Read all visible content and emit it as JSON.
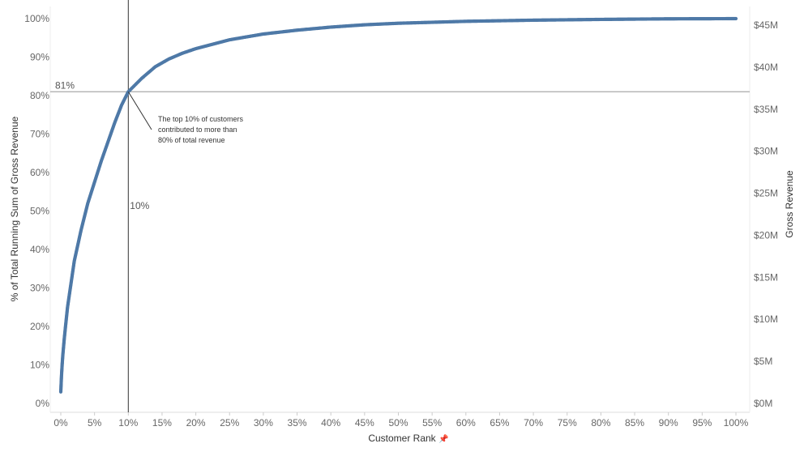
{
  "chart_data": {
    "type": "scatter",
    "x_axis": {
      "label": "Customer Rank",
      "ticks": [
        "0%",
        "5%",
        "10%",
        "15%",
        "20%",
        "25%",
        "30%",
        "35%",
        "40%",
        "45%",
        "50%",
        "55%",
        "60%",
        "65%",
        "70%",
        "75%",
        "80%",
        "85%",
        "90%",
        "95%",
        "100%"
      ],
      "range": [
        0,
        100
      ],
      "unit": "%"
    },
    "y_axis_left": {
      "label": "% of Total Running Sum of Gross Revenue",
      "ticks": [
        "0%",
        "10%",
        "20%",
        "30%",
        "40%",
        "50%",
        "60%",
        "70%",
        "80%",
        "90%",
        "100%"
      ],
      "range": [
        0,
        100
      ]
    },
    "y_axis_right": {
      "label": "Gross Revenue",
      "ticks": [
        "$0M",
        "$5M",
        "$10M",
        "$15M",
        "$20M",
        "$25M",
        "$30M",
        "$35M",
        "$40M",
        "$45M"
      ],
      "range": [
        0,
        45
      ]
    },
    "series": [
      {
        "color": "#4e79a7",
        "points": [
          [
            0,
            3
          ],
          [
            0.05,
            5
          ],
          [
            0.1,
            7
          ],
          [
            0.15,
            8.5
          ],
          [
            0.2,
            10
          ],
          [
            0.3,
            12.5
          ],
          [
            0.4,
            14.5
          ],
          [
            0.5,
            16.5
          ],
          [
            0.7,
            20
          ],
          [
            1,
            25
          ],
          [
            1.5,
            31
          ],
          [
            2,
            37
          ],
          [
            3,
            45
          ],
          [
            4,
            52
          ],
          [
            5,
            57.5
          ],
          [
            6,
            63
          ],
          [
            7,
            68
          ],
          [
            8,
            73
          ],
          [
            9,
            77.5
          ],
          [
            10,
            81
          ],
          [
            12,
            84.5
          ],
          [
            14,
            87.5
          ],
          [
            16,
            89.5
          ],
          [
            18,
            91
          ],
          [
            20,
            92.2
          ],
          [
            25,
            94.5
          ],
          [
            30,
            96
          ],
          [
            35,
            97
          ],
          [
            40,
            97.8
          ],
          [
            45,
            98.4
          ],
          [
            50,
            98.8
          ],
          [
            60,
            99.3
          ],
          [
            70,
            99.6
          ],
          [
            80,
            99.8
          ],
          [
            90,
            99.95
          ],
          [
            100,
            100
          ]
        ]
      }
    ],
    "reference_lines": [
      {
        "axis": "y",
        "value": 81,
        "label": "81%"
      },
      {
        "axis": "x",
        "value": 10,
        "label": "10%"
      }
    ],
    "annotation": {
      "lines": [
        "The top 10% of customers",
        "contributed to more than",
        "80% of total revenue"
      ]
    },
    "grid": false,
    "legend": "none"
  }
}
